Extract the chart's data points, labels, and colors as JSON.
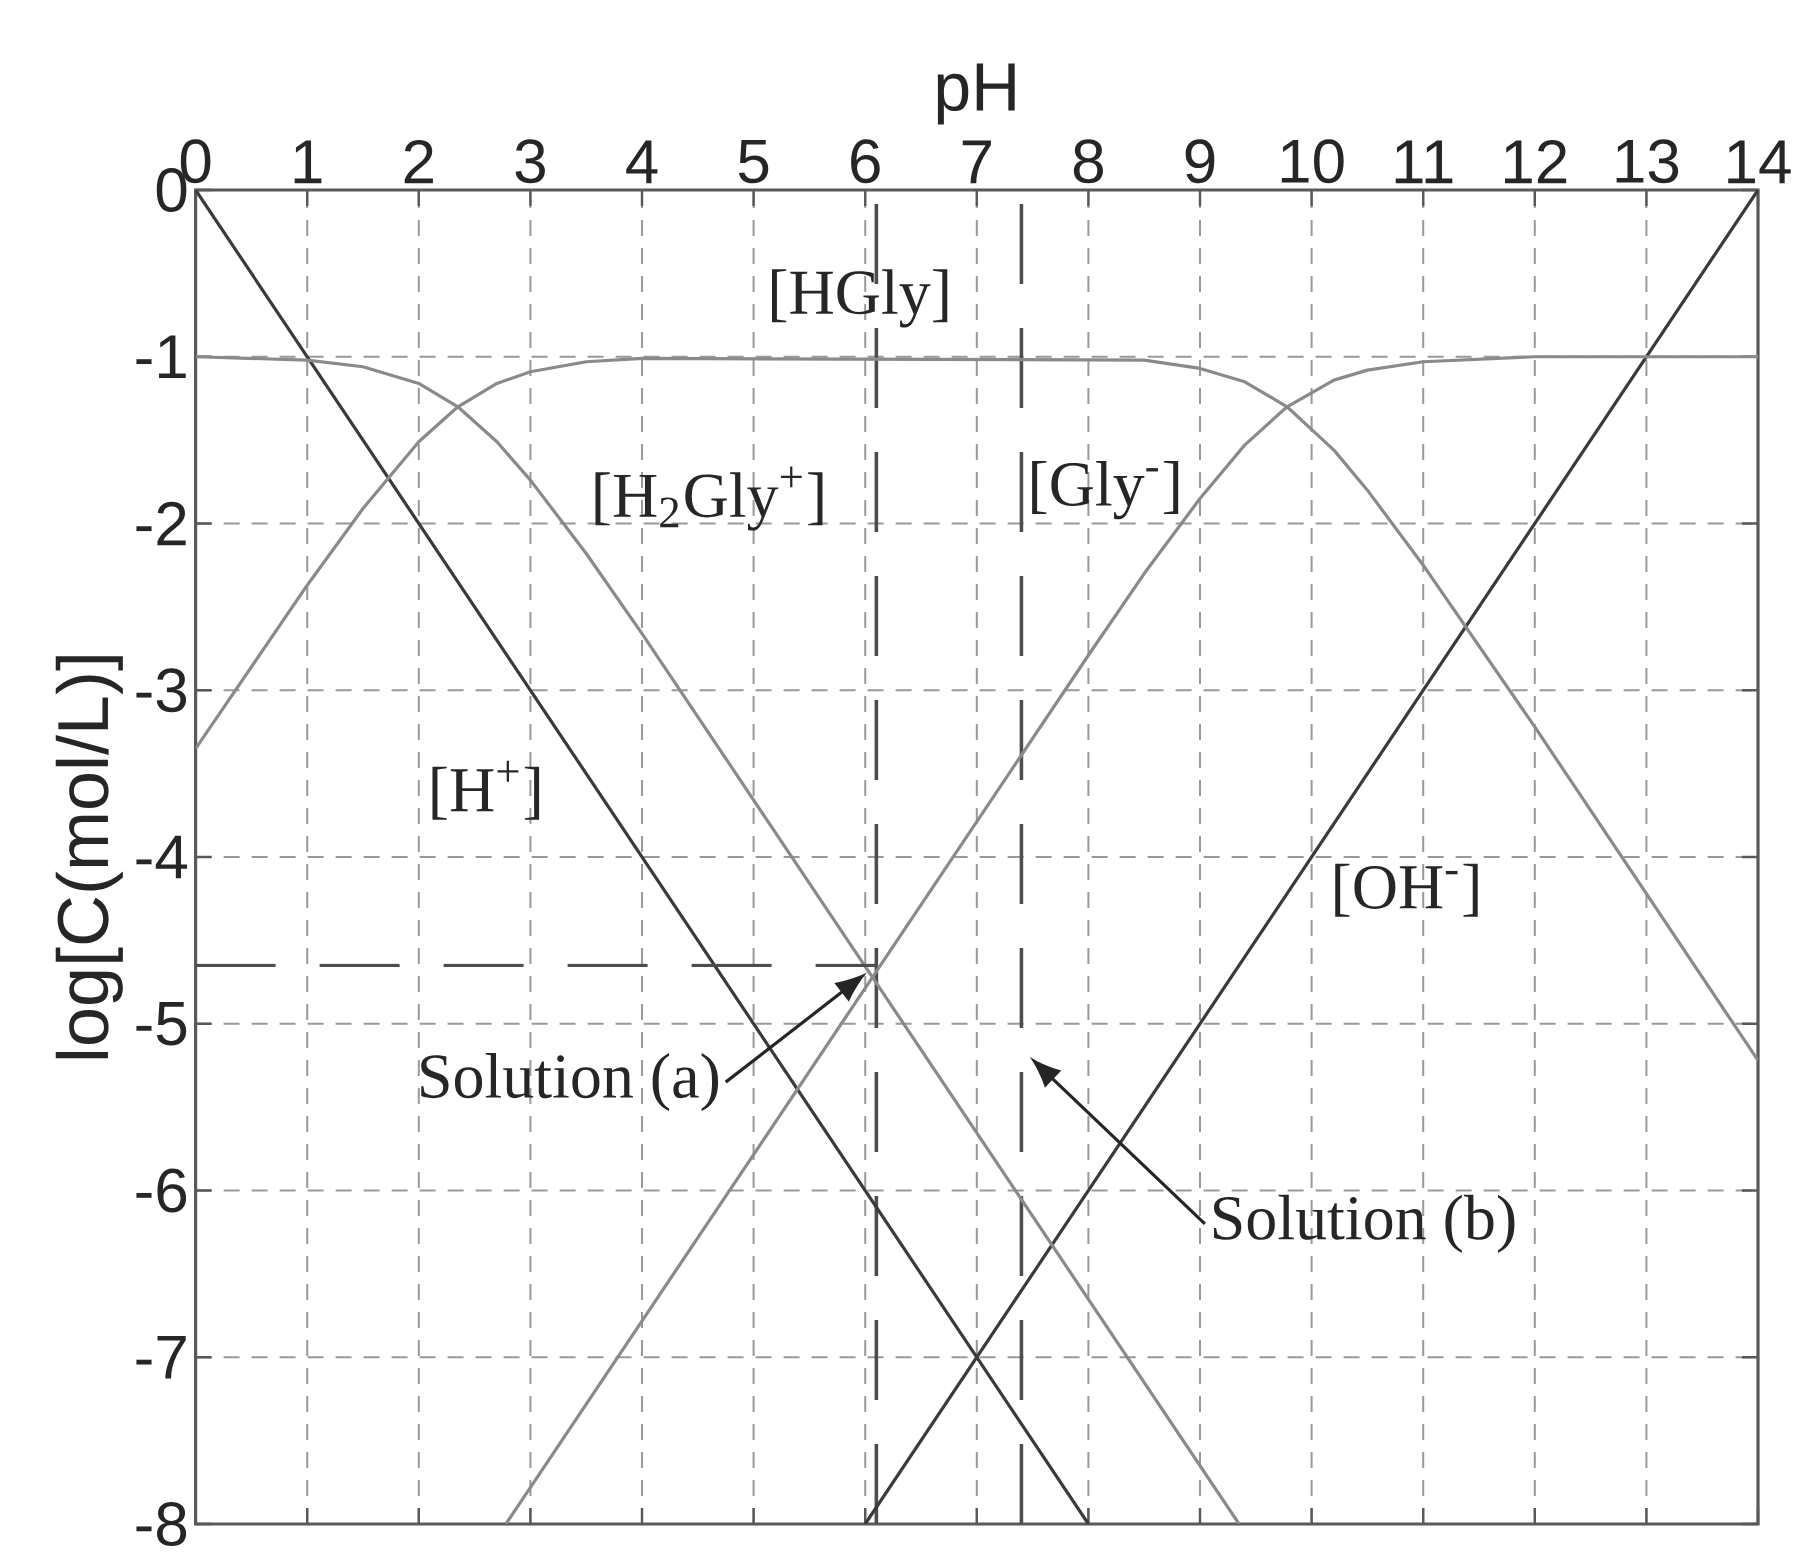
{
  "chart_data": {
    "type": "line",
    "xlabel": "pH",
    "ylabel": "log[C(mol/L)]",
    "xlim": [
      0,
      14
    ],
    "ylim": [
      -8,
      0
    ],
    "xticks": [
      0,
      1,
      2,
      3,
      4,
      5,
      6,
      7,
      8,
      9,
      10,
      11,
      12,
      13,
      14
    ],
    "yticks": [
      0,
      -1,
      -2,
      -3,
      -4,
      -5,
      -6,
      -7,
      -8
    ],
    "grid": true,
    "marker": "none",
    "series": [
      {
        "name": "[H$^{+}$]",
        "color": "#3a3a3a",
        "x": [
          0,
          8
        ],
        "values": [
          0,
          -8
        ]
      },
      {
        "name": "[OH$^{-}$]",
        "color": "#3a3a3a",
        "x": [
          6,
          14
        ],
        "values": [
          -8,
          0
        ]
      },
      {
        "name": "[H$_{2}$Gly$^{+}$]",
        "color": "#8a8a8a",
        "x": [
          0,
          1,
          1.5,
          2,
          2.35,
          2.7,
          3,
          3.5,
          4,
          9.35
        ],
        "values": [
          -1.0,
          -1.02,
          -1.06,
          -1.16,
          -1.3,
          -1.51,
          -1.74,
          -2.18,
          -2.66,
          -8.0
        ]
      },
      {
        "name": "[HGly]",
        "color": "#8a8a8a",
        "x": [
          0,
          1,
          1.5,
          2,
          2.35,
          2.7,
          3,
          3.5,
          4,
          8.5,
          9,
          9.4,
          9.78,
          10.2,
          10.5,
          11,
          12,
          14
        ],
        "values": [
          -3.35,
          -2.37,
          -1.91,
          -1.51,
          -1.3,
          -1.16,
          -1.09,
          -1.03,
          -1.01,
          -1.02,
          -1.07,
          -1.15,
          -1.3,
          -1.56,
          -1.8,
          -2.25,
          -3.22,
          -5.22
        ]
      },
      {
        "name": "[Gly$^{-}$]",
        "color": "#8a8a8a",
        "x": [
          2.78,
          8,
          8.5,
          9,
          9.4,
          9.78,
          10.2,
          10.5,
          11,
          12,
          14
        ],
        "values": [
          -8.0,
          -2.79,
          -2.3,
          -1.85,
          -1.53,
          -1.3,
          -1.14,
          -1.08,
          -1.03,
          -1.0,
          -1.0
        ]
      },
      {
        "color": "#4d4d4d",
        "line_style": "dashed",
        "x": [
          0,
          6.1
        ],
        "values": [
          -4.65,
          -4.65
        ]
      }
    ],
    "ref_lines": [
      {
        "axis": "x",
        "value": 6.1,
        "color": "#4d4d4d",
        "line_style": "dashed"
      },
      {
        "axis": "x",
        "value": 7.4,
        "color": "#4d4d4d",
        "line_style": "dashed"
      }
    ],
    "annotations": [
      {
        "text": "Solution (a)",
        "x": 6.1,
        "y": -4.65
      },
      "Solution (b)"
    ]
  }
}
